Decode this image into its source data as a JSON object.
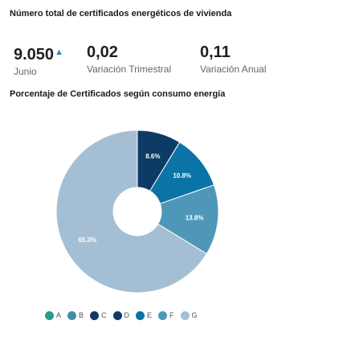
{
  "header": {
    "title": "Número total de certificados energéticos de vivienda"
  },
  "kpis": [
    {
      "value": "9.050",
      "label": "Junio",
      "trend_icon": "caret-up-icon"
    },
    {
      "value": "0,02",
      "label": "Variación Trimestral"
    },
    {
      "value": "0,11",
      "label": "Variación Anual"
    }
  ],
  "chart_section": {
    "title": "Porcentaje de Certificados según consumo energía"
  },
  "chart_data": {
    "type": "pie",
    "donut": true,
    "categories": [
      "A",
      "B",
      "C",
      "D",
      "E",
      "F",
      "G"
    ],
    "values": [
      0,
      0,
      0,
      8.6,
      10.8,
      13.8,
      65.3
    ],
    "data_labels": [
      "",
      "",
      "",
      "8.6%",
      "10.8%",
      "13.8%",
      "65.3%"
    ],
    "colors": [
      "#2b9a8c",
      "#3e8fa6",
      "#14365e",
      "#0d3b66",
      "#0a74a6",
      "#4e97b8",
      "#a4bfd3"
    ],
    "legend_position": "bottom"
  }
}
